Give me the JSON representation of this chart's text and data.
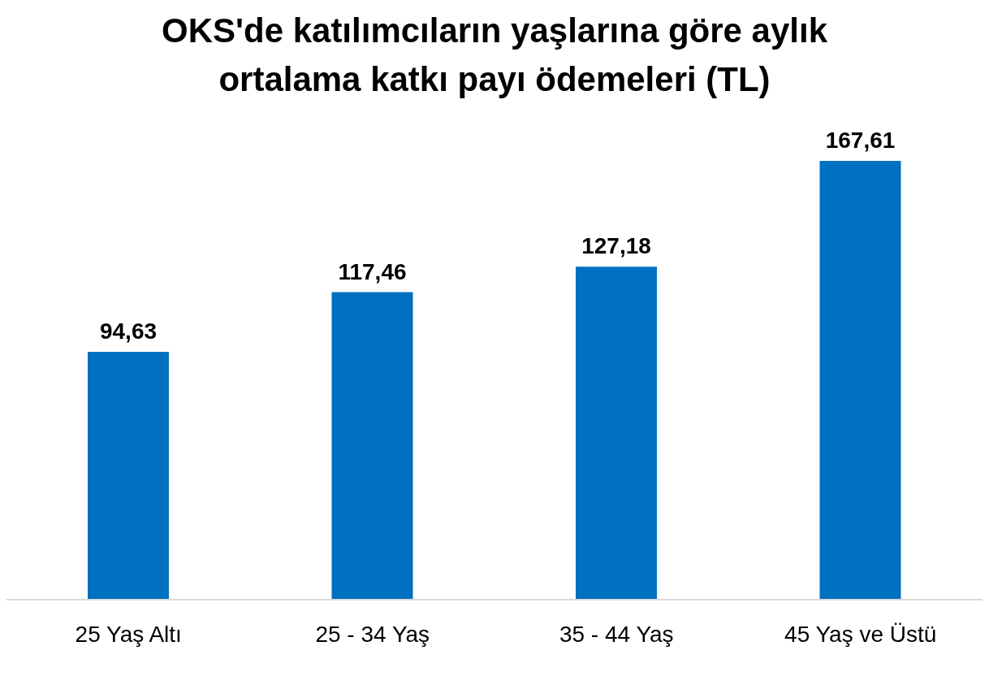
{
  "chart_data": {
    "type": "bar",
    "title": "OKS'de katılımcıların yaşlarına göre aylık ortalama katkı payı ödemeleri (TL)",
    "categories": [
      "25 Yaş Altı",
      "25 - 34 Yaş",
      "35 - 44 Yaş",
      "45 Yaş ve Üstü"
    ],
    "values": [
      94.63,
      117.46,
      127.18,
      167.61
    ],
    "value_labels": [
      "94,63",
      "117,46",
      "127,18",
      "167,61"
    ],
    "color": "#0070c0",
    "grid": false
  }
}
